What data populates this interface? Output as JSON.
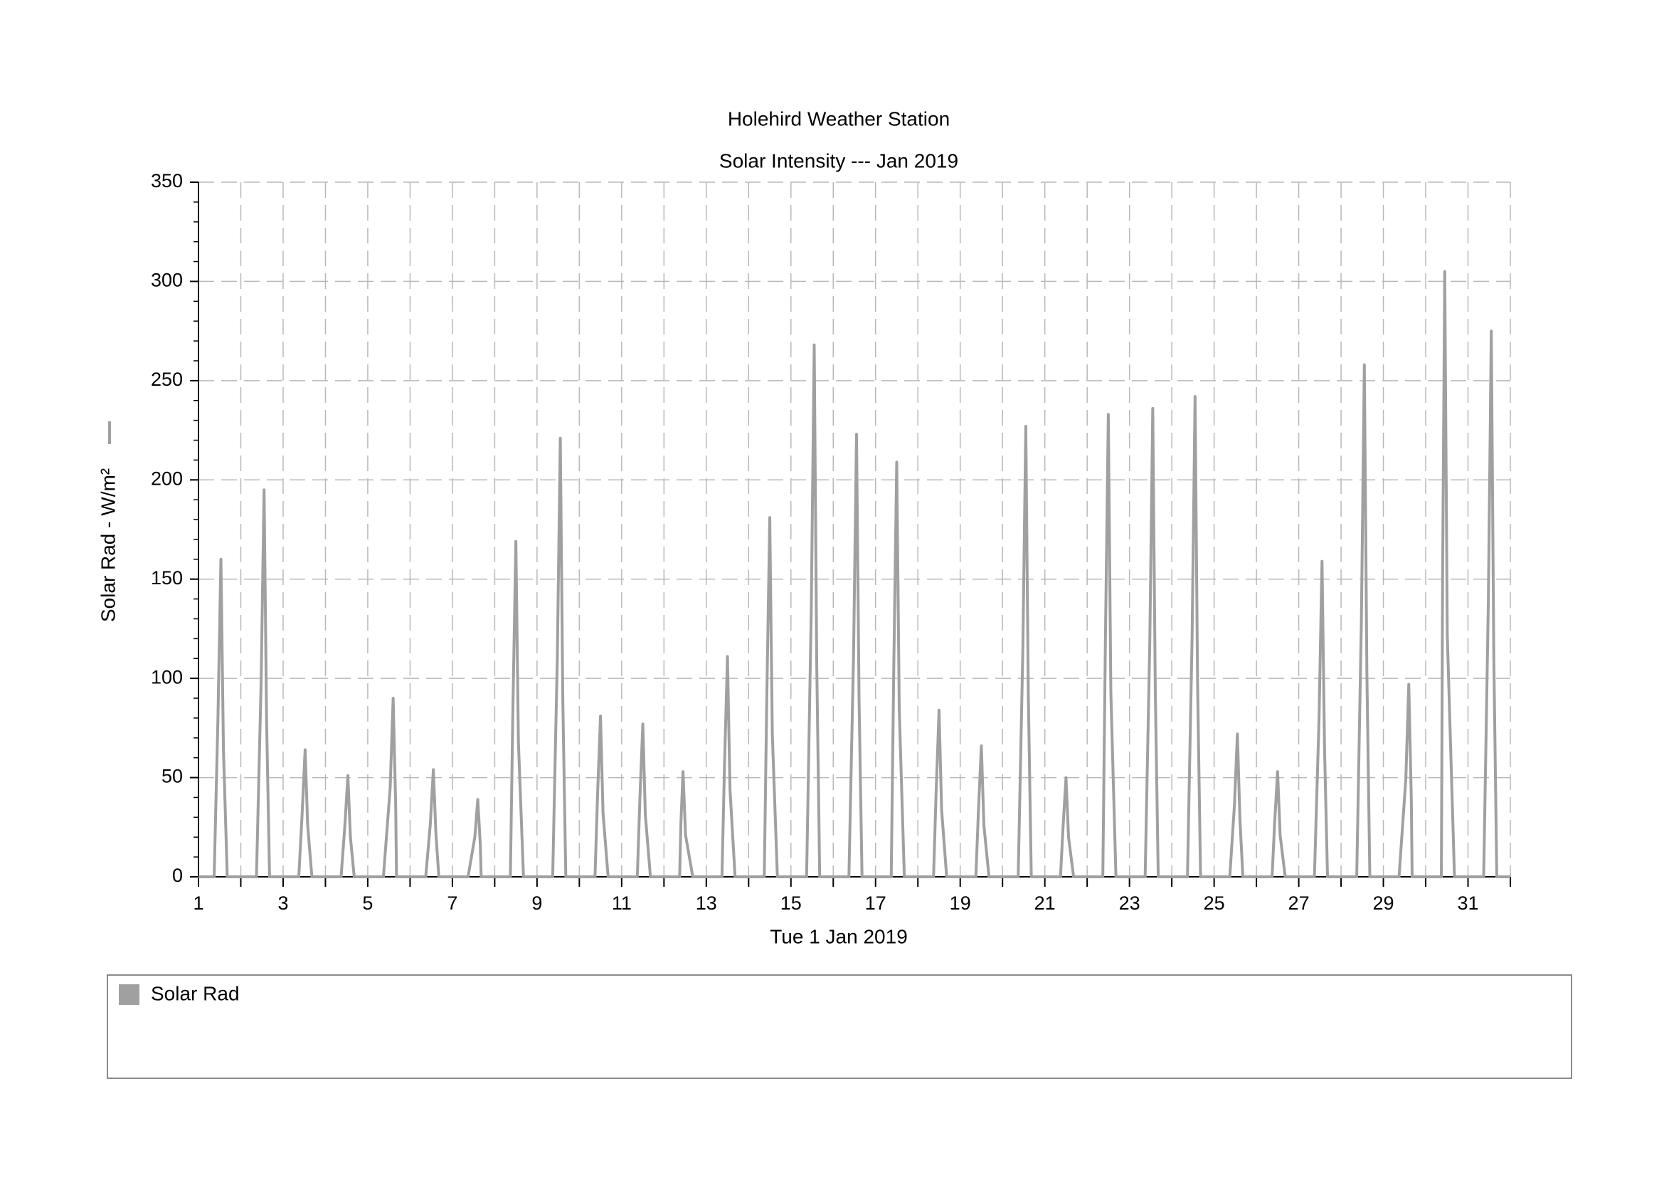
{
  "chart_data": {
    "type": "line",
    "title": "Holehird Weather Station",
    "subtitle": "Solar Intensity --- Jan 2019",
    "x_label": "Tue 1 Jan 2019",
    "y_label": "Solar Rad - W/m²",
    "x": [
      1,
      1.37,
      1.46,
      1.53,
      1.59,
      1.68,
      2.37,
      2.48,
      2.55,
      2.61,
      2.68,
      3.37,
      3.45,
      3.52,
      3.58,
      3.68,
      4.37,
      4.46,
      4.53,
      4.59,
      4.68,
      5.37,
      5.53,
      5.6,
      5.66,
      5.68,
      6.37,
      6.48,
      6.55,
      6.61,
      6.68,
      7.37,
      7.53,
      7.6,
      7.66,
      7.68,
      8.37,
      8.43,
      8.5,
      8.56,
      8.68,
      9.37,
      9.48,
      9.55,
      9.61,
      9.68,
      10.37,
      10.43,
      10.5,
      10.56,
      10.68,
      11.37,
      11.43,
      11.5,
      11.56,
      11.68,
      12.37,
      12.4,
      12.45,
      12.51,
      12.68,
      13.37,
      13.43,
      13.5,
      13.56,
      13.68,
      14.37,
      14.43,
      14.5,
      14.56,
      14.68,
      15.37,
      15.48,
      15.55,
      15.61,
      15.68,
      16.37,
      16.48,
      16.55,
      16.61,
      16.68,
      17.37,
      17.43,
      17.5,
      17.56,
      17.68,
      18.37,
      18.43,
      18.5,
      18.56,
      18.68,
      19.37,
      19.43,
      19.5,
      19.56,
      19.68,
      20.37,
      20.48,
      20.55,
      20.61,
      20.68,
      21.37,
      21.43,
      21.5,
      21.56,
      21.68,
      22.37,
      22.43,
      22.5,
      22.56,
      22.68,
      23.37,
      23.48,
      23.55,
      23.61,
      23.68,
      24.37,
      24.48,
      24.55,
      24.61,
      24.68,
      25.37,
      25.48,
      25.55,
      25.61,
      25.68,
      26.37,
      26.43,
      26.5,
      26.56,
      26.68,
      27.37,
      27.48,
      27.55,
      27.61,
      27.68,
      28.37,
      28.48,
      28.55,
      28.61,
      28.68,
      29.37,
      29.53,
      29.6,
      29.66,
      29.68,
      30.37,
      30.4,
      30.45,
      30.51,
      30.68,
      31.37,
      31.48,
      31.55,
      31.61,
      31.68,
      32
    ],
    "series": [
      {
        "name": "Solar Rad",
        "color": "#a0a0a0",
        "values": [
          0,
          0,
          80,
          160,
          64,
          0,
          0,
          98,
          195,
          78,
          0,
          0,
          32,
          64,
          26,
          0,
          0,
          26,
          51,
          20,
          0,
          0,
          45,
          90,
          36,
          0,
          0,
          27,
          54,
          22,
          0,
          0,
          20,
          39,
          16,
          0,
          0,
          85,
          169,
          68,
          0,
          0,
          111,
          221,
          88,
          0,
          0,
          41,
          81,
          32,
          0,
          0,
          39,
          77,
          31,
          0,
          0,
          27,
          53,
          21,
          0,
          0,
          56,
          111,
          44,
          0,
          0,
          91,
          181,
          72,
          0,
          0,
          134,
          268,
          107,
          0,
          0,
          112,
          223,
          89,
          0,
          0,
          105,
          209,
          84,
          0,
          0,
          42,
          84,
          34,
          0,
          0,
          33,
          66,
          26,
          0,
          0,
          114,
          227,
          91,
          0,
          0,
          25,
          50,
          20,
          0,
          0,
          117,
          233,
          93,
          0,
          0,
          118,
          236,
          94,
          0,
          0,
          121,
          242,
          97,
          0,
          0,
          36,
          72,
          29,
          0,
          0,
          27,
          53,
          21,
          0,
          0,
          80,
          159,
          64,
          0,
          0,
          129,
          258,
          103,
          0,
          0,
          49,
          97,
          39,
          0,
          0,
          153,
          305,
          122,
          0,
          0,
          138,
          275,
          110,
          0,
          0
        ]
      }
    ],
    "xlim": [
      1,
      32
    ],
    "xticks": [
      1,
      3,
      5,
      7,
      9,
      11,
      13,
      15,
      17,
      19,
      21,
      23,
      25,
      27,
      29,
      31
    ],
    "xminorticks": [
      2,
      4,
      6,
      8,
      10,
      12,
      14,
      16,
      18,
      20,
      22,
      24,
      26,
      28,
      30,
      32
    ],
    "ylim": [
      0,
      350
    ],
    "yticks": [
      0,
      50,
      100,
      150,
      200,
      250,
      300,
      350
    ],
    "yminorticks": [
      10,
      20,
      30,
      40,
      60,
      70,
      80,
      90,
      110,
      120,
      130,
      140,
      160,
      170,
      180,
      190,
      210,
      220,
      230,
      240,
      260,
      270,
      280,
      290,
      310,
      320,
      330,
      340
    ],
    "grid": true,
    "legend": "bottom"
  }
}
